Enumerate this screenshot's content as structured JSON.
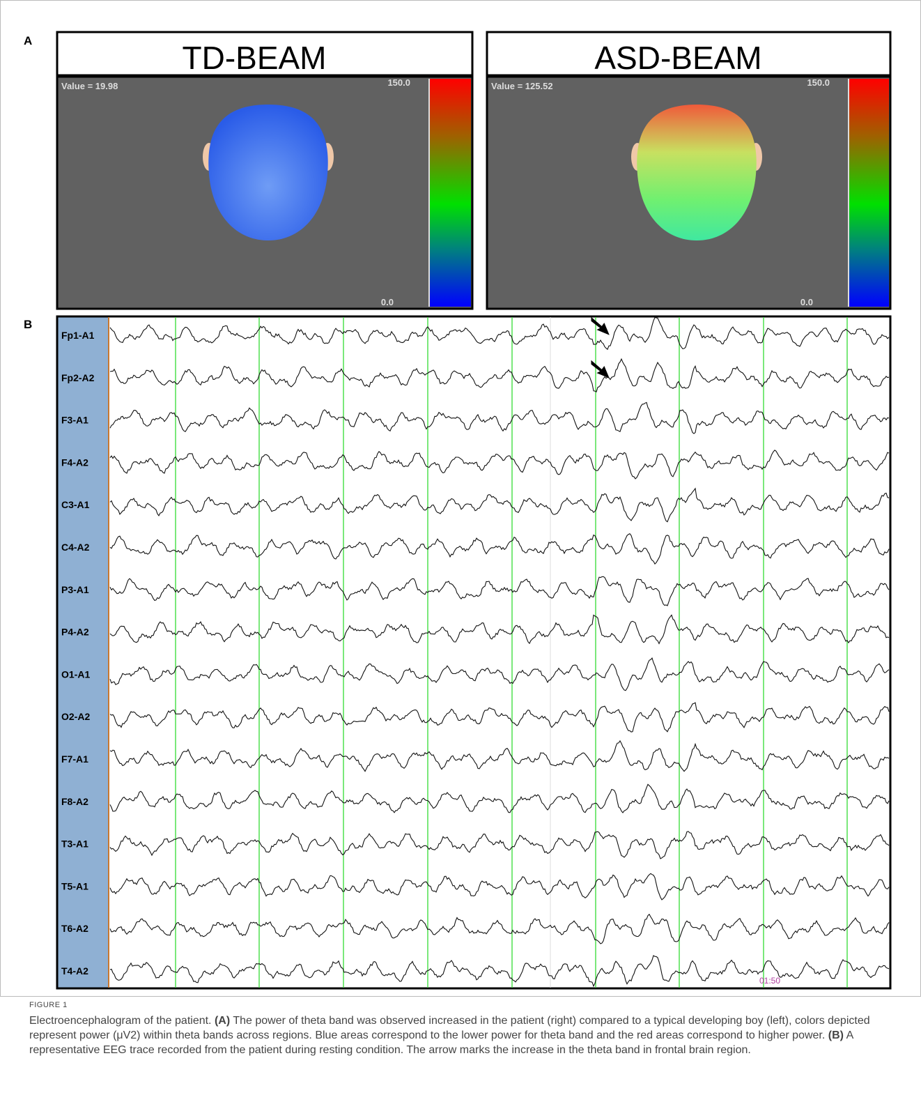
{
  "panel_a": {
    "label": "A",
    "maps": [
      {
        "title": "TD-BEAM",
        "value_text": "Value = 19.98",
        "scale_max": "150.0",
        "scale_min": "0.0"
      },
      {
        "title": "ASD-BEAM",
        "value_text": "Value = 125.52",
        "scale_max": "150.0",
        "scale_min": "0.0"
      }
    ]
  },
  "panel_b": {
    "label": "B",
    "channels": [
      "Fp1-A1",
      "Fp2-A2",
      "F3-A1",
      "F4-A2",
      "C3-A1",
      "C4-A2",
      "P3-A1",
      "P4-A2",
      "O1-A1",
      "O2-A2",
      "F7-A1",
      "F8-A2",
      "T3-A1",
      "T5-A1",
      "T6-A2",
      "T4-A2"
    ],
    "time_label": "01:50"
  },
  "caption": {
    "figure_label": "FIGURE 1",
    "intro": "Electroencephalogram of the patient.",
    "parts": [
      {
        "label": "(A)",
        "text": "The power of theta band was observed increased in the patient (right) compared to a typical developing boy (left), colors depicted represent power (μV2) within theta bands across regions. Blue areas correspond to the lower power for theta band and the red areas correspond to higher power."
      },
      {
        "label": "(B)",
        "text": "A representative EEG trace recorded from the patient during resting condition. The arrow marks the increase in the theta band in frontal brain region."
      }
    ]
  }
}
